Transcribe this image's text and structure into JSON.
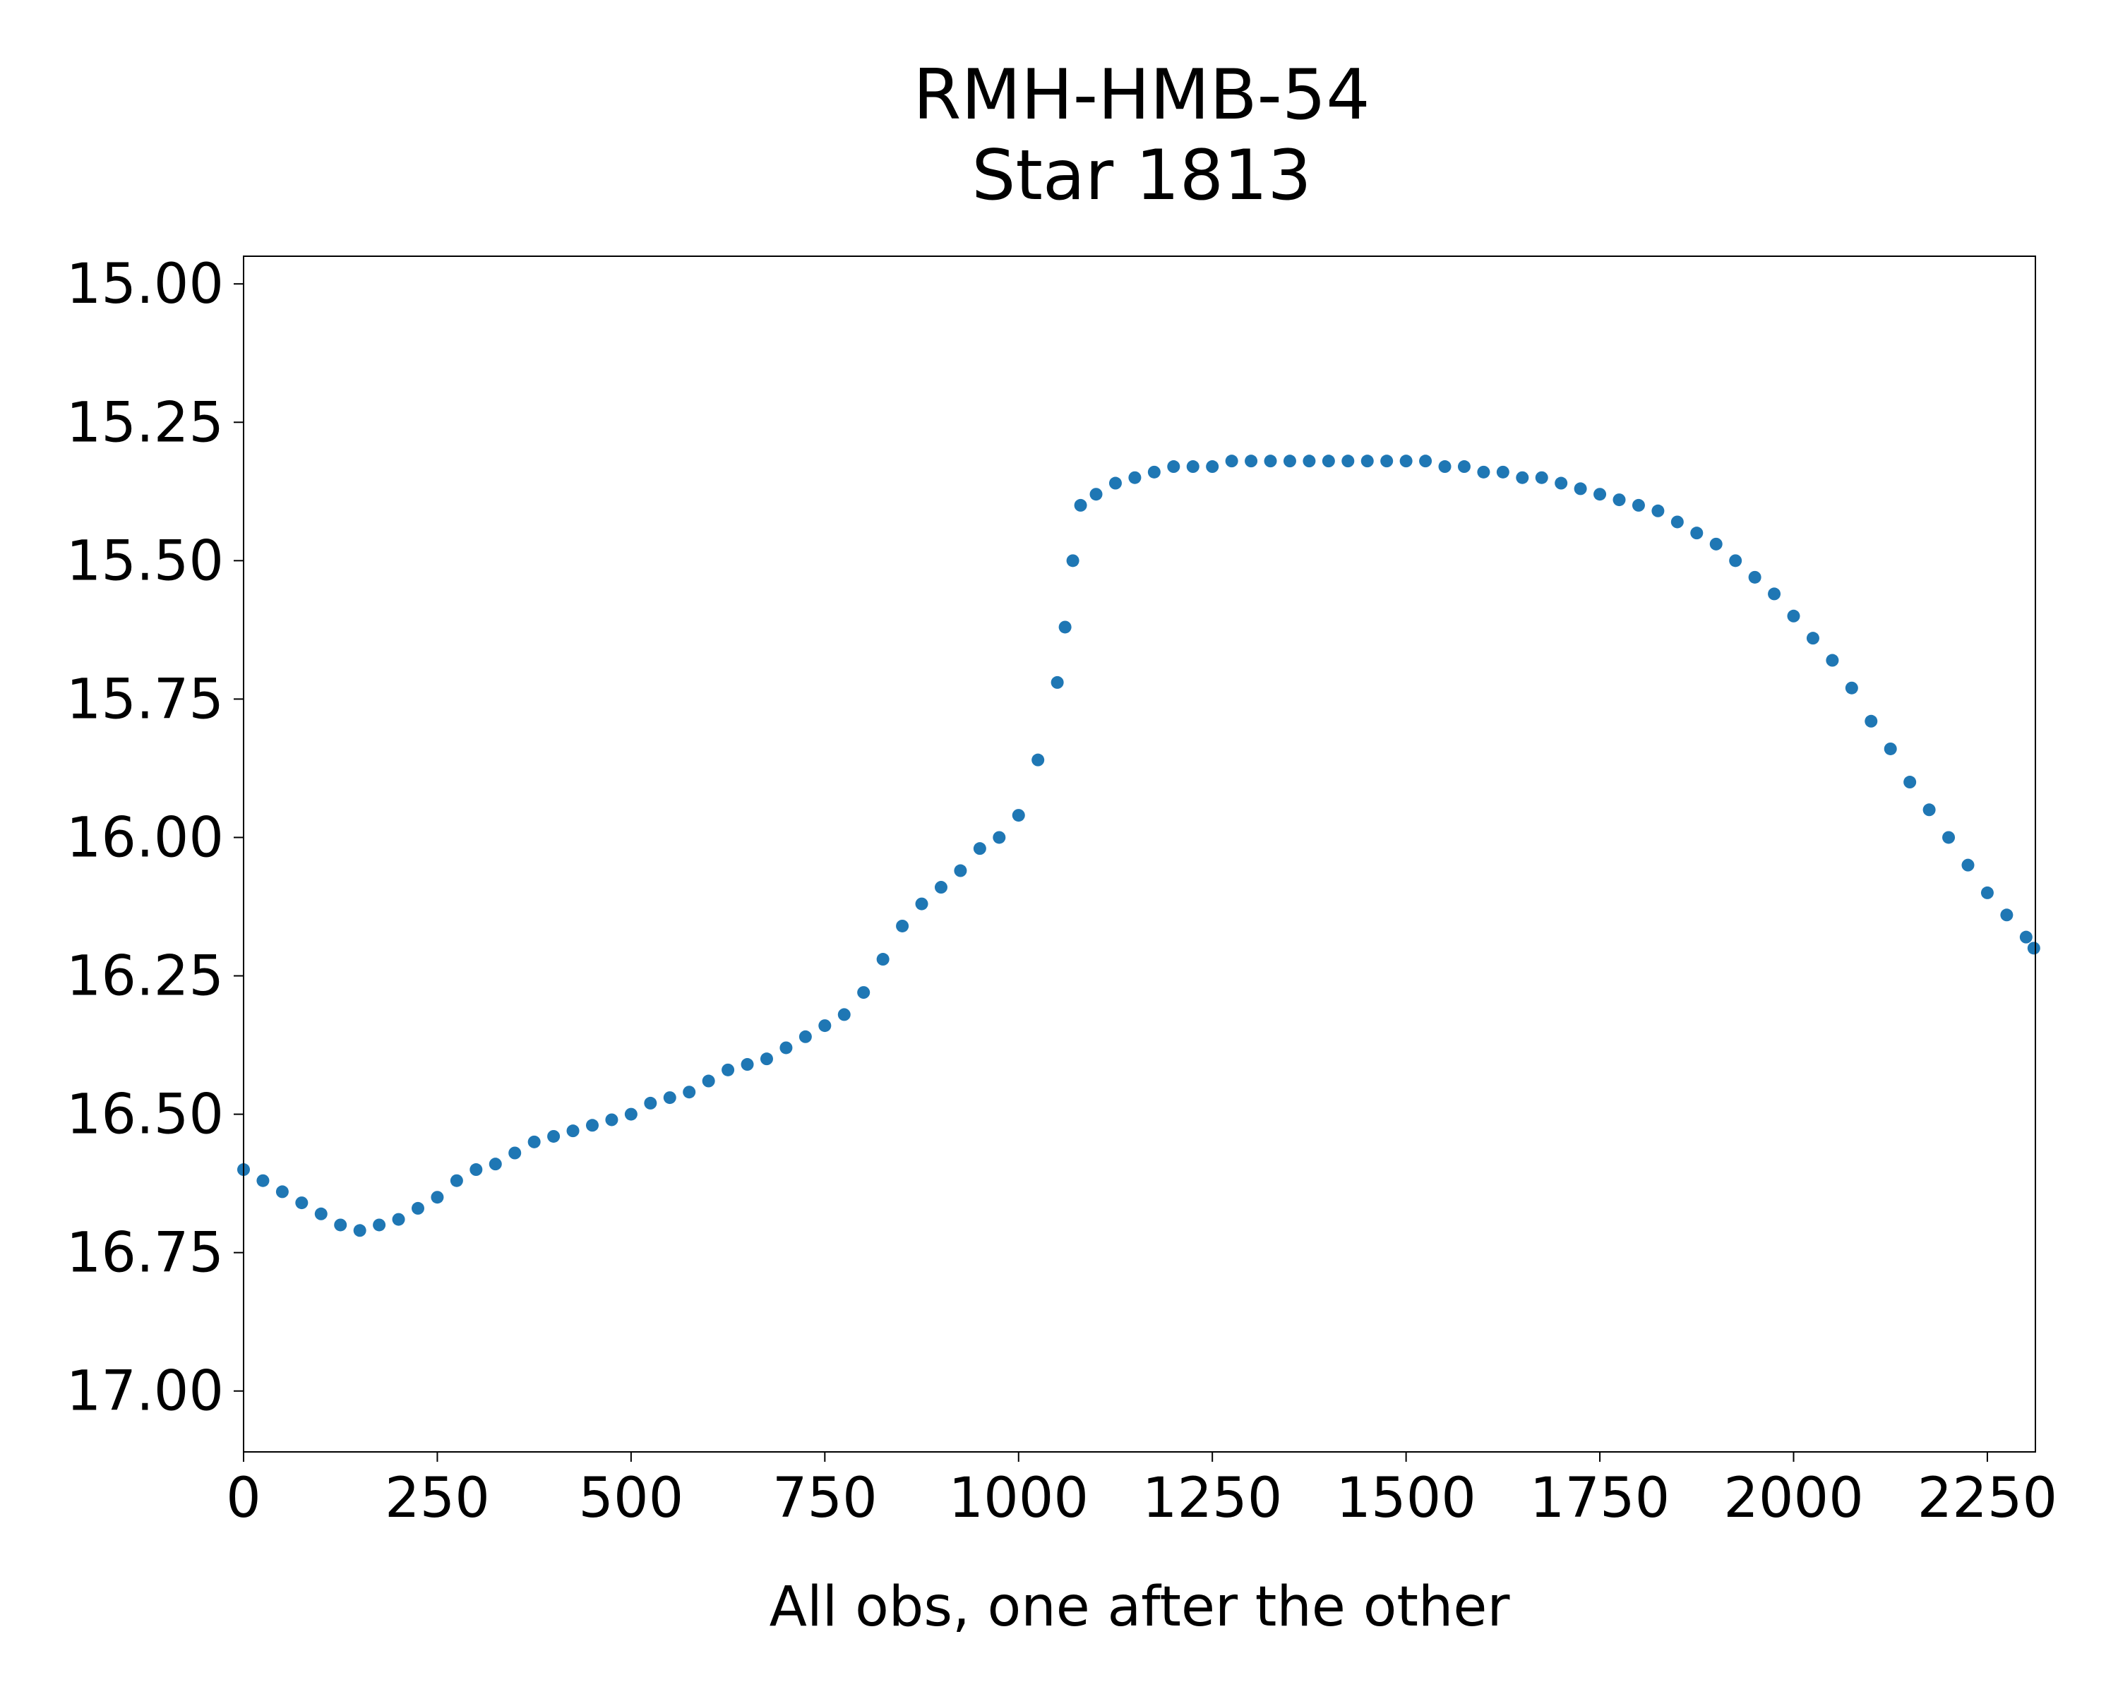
{
  "chart_data": {
    "type": "scatter",
    "title": [
      "RMH-HMB-54",
      "Star 1813"
    ],
    "xlabel": "All obs, one after the other",
    "ylabel": "",
    "xlim": [
      0,
      2312
    ],
    "ylim": [
      17.11,
      14.95
    ],
    "y_inverted": true,
    "grid": false,
    "legend": "none",
    "x_ticks": [
      0,
      250,
      500,
      750,
      1000,
      1250,
      1500,
      1750,
      2000,
      2250
    ],
    "x_tick_labels": [
      "0",
      "250",
      "500",
      "750",
      "1000",
      "1250",
      "1500",
      "1750",
      "2000",
      "2250"
    ],
    "y_ticks": [
      15.0,
      15.25,
      15.5,
      15.75,
      16.0,
      16.25,
      16.5,
      16.75,
      17.0
    ],
    "y_tick_labels": [
      "15.00",
      "15.25",
      "15.50",
      "15.75",
      "16.00",
      "16.25",
      "16.50",
      "16.75",
      "17.00"
    ],
    "marker_color": "#1f77b4",
    "series": [
      {
        "x": [
          0,
          25,
          50,
          75,
          100,
          125,
          150,
          175,
          200,
          225,
          250,
          275,
          300,
          325,
          350,
          375,
          400,
          425,
          450,
          475,
          500,
          525,
          550,
          575,
          600,
          625,
          650,
          675,
          700,
          725,
          750,
          775,
          800,
          825,
          850,
          875,
          900,
          925,
          950,
          975,
          1000,
          1025,
          1050,
          1060,
          1070,
          1080,
          1100,
          1125,
          1150,
          1175,
          1200,
          1225,
          1250,
          1275,
          1300,
          1325,
          1350,
          1375,
          1400,
          1425,
          1450,
          1475,
          1500,
          1525,
          1550,
          1575,
          1600,
          1625,
          1650,
          1675,
          1700,
          1725,
          1750,
          1775,
          1800,
          1825,
          1850,
          1875,
          1900,
          1925,
          1950,
          1975,
          2000,
          2025,
          2050,
          2075,
          2100,
          2125,
          2150,
          2175,
          2200,
          2225,
          2250,
          2275,
          2300,
          2310
        ],
        "y": [
          16.6,
          16.62,
          16.64,
          16.66,
          16.68,
          16.7,
          16.71,
          16.7,
          16.69,
          16.67,
          16.65,
          16.62,
          16.6,
          16.59,
          16.57,
          16.55,
          16.54,
          16.53,
          16.52,
          16.51,
          16.5,
          16.48,
          16.47,
          16.46,
          16.44,
          16.42,
          16.41,
          16.4,
          16.38,
          16.36,
          16.34,
          16.32,
          16.28,
          16.22,
          16.16,
          16.12,
          16.09,
          16.06,
          16.02,
          16.0,
          15.96,
          15.86,
          15.72,
          15.62,
          15.5,
          15.4,
          15.38,
          15.36,
          15.35,
          15.34,
          15.33,
          15.33,
          15.33,
          15.32,
          15.32,
          15.32,
          15.32,
          15.32,
          15.32,
          15.32,
          15.32,
          15.32,
          15.32,
          15.32,
          15.33,
          15.33,
          15.34,
          15.34,
          15.35,
          15.35,
          15.36,
          15.37,
          15.38,
          15.39,
          15.4,
          15.41,
          15.43,
          15.45,
          15.47,
          15.5,
          15.53,
          15.56,
          15.6,
          15.64,
          15.68,
          15.73,
          15.79,
          15.84,
          15.9,
          15.95,
          16.0,
          16.05,
          16.1,
          16.14,
          16.18,
          16.2
        ]
      }
    ]
  }
}
